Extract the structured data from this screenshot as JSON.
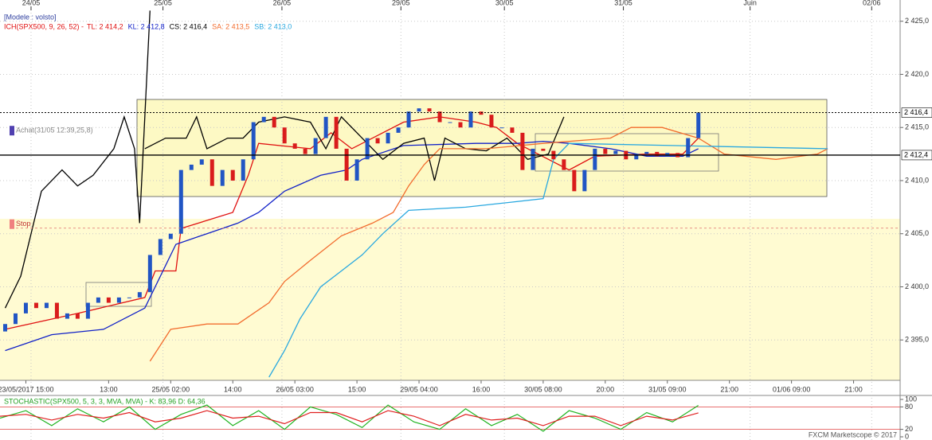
{
  "chart_data": [
    {
      "type": "candlestick",
      "title": "[Modele : volsto]",
      "indicator": "ICH(SPX500, 9, 26, 52) - ",
      "up_color": "#2155c4",
      "down_color": "#d91c1c",
      "x": [
        1,
        3,
        5,
        7,
        9,
        11,
        13,
        15,
        17,
        19,
        21,
        23,
        25,
        27,
        29,
        31,
        33,
        35,
        37,
        39,
        41,
        43,
        45,
        47,
        49,
        51,
        53,
        55,
        57,
        59,
        61,
        63,
        65,
        67,
        69,
        71,
        73,
        75,
        77,
        79,
        81,
        83,
        85,
        87,
        89,
        91,
        93,
        95,
        97,
        99,
        101,
        103,
        105,
        107,
        109,
        111,
        113,
        115,
        117,
        119,
        121,
        123,
        125,
        127,
        129,
        131,
        133,
        135
      ],
      "open": [
        2395.8,
        2396.5,
        2397.5,
        2398.5,
        2398,
        2398.5,
        2397,
        2397.5,
        2397,
        2398.5,
        2399,
        2398.5,
        2399,
        2399,
        2399.5,
        2403,
        2404.5,
        2405,
        2411,
        2411.5,
        2412,
        2409.5,
        2411,
        2410,
        2412,
        2415.5,
        2416,
        2415,
        2413.5,
        2413,
        2412.5,
        2414,
        2416,
        2413,
        2410,
        2412,
        2414,
        2413.5,
        2414.5,
        2415,
        2416.5,
        2416.8,
        2416.5,
        2415.5,
        2415.5,
        2415,
        2416.5,
        2416.2,
        2415,
        2415,
        2414.5,
        2411,
        2413,
        2412.8,
        2412,
        2411,
        2409,
        2411,
        2413,
        2412.5,
        2412.8,
        2412,
        2412.5,
        2412.7,
        2412.3,
        2412.6,
        2412.2,
        2414
      ],
      "close": [
        2396.5,
        2397.5,
        2398.5,
        2398,
        2398.5,
        2397,
        2397.5,
        2397,
        2398.5,
        2399,
        2398.5,
        2399,
        2399,
        2399.5,
        2403,
        2404.5,
        2405,
        2411,
        2411.5,
        2412,
        2409.5,
        2411,
        2410,
        2412,
        2415.5,
        2416,
        2415,
        2413.5,
        2413,
        2412.5,
        2414,
        2416,
        2413,
        2410,
        2412,
        2414,
        2413.5,
        2414.5,
        2415,
        2416.5,
        2416.8,
        2416.5,
        2415.5,
        2415.5,
        2415,
        2416.5,
        2416.2,
        2415,
        2415,
        2414.5,
        2411,
        2413,
        2412.8,
        2412,
        2411,
        2409,
        2411,
        2413,
        2412.5,
        2412.8,
        2412,
        2412.5,
        2412.7,
        2412.3,
        2412.6,
        2412.2,
        2414,
        2416.4
      ],
      "series": [
        {
          "name": "TL: 2 414,2",
          "color": "#e01010",
          "x": [
            1,
            15,
            28,
            30,
            34,
            35,
            45,
            48,
            50,
            60,
            64,
            68,
            72,
            78,
            85,
            92,
            96,
            100,
            104,
            110,
            115,
            125,
            132,
            135
          ],
          "values": [
            2396,
            2397.5,
            2399,
            2401.5,
            2401.5,
            2405.5,
            2407,
            2410.5,
            2413.5,
            2413,
            2414.5,
            2413,
            2414,
            2415.5,
            2416,
            2415.5,
            2415,
            2413.5,
            2412.5,
            2411,
            2412.3,
            2412.5,
            2412.5,
            2414
          ]
        },
        {
          "name": "KL: 2 412,8",
          "color": "#1020c8",
          "x": [
            1,
            10,
            20,
            28,
            34,
            40,
            46,
            50,
            55,
            62,
            67,
            70,
            78,
            92,
            100,
            105,
            110,
            118,
            125,
            132,
            135
          ],
          "values": [
            2394,
            2395.5,
            2396,
            2398,
            2404,
            2405,
            2406,
            2407,
            2409,
            2410.5,
            2411,
            2412,
            2413.3,
            2413.5,
            2413.5,
            2413.7,
            2413.5,
            2413,
            2412.3,
            2412.3,
            2413
          ]
        },
        {
          "name": "CS: 2 416,4",
          "color": "#000000",
          "x": [
            1,
            4,
            8,
            12,
            15,
            18,
            22,
            24,
            26,
            27,
            29,
            28,
            28,
            32,
            36,
            38,
            40,
            44,
            47,
            50,
            55,
            60,
            63,
            66,
            70,
            74,
            78,
            82,
            84,
            86,
            90,
            94,
            98,
            102,
            106,
            109
          ],
          "values": [
            2398,
            2401,
            2409,
            2411,
            2409.5,
            2410.5,
            2413,
            2416,
            2413,
            2406,
            2426,
            null,
            2413,
            2414,
            2414,
            2416,
            2413,
            2414,
            2414,
            2415.5,
            2416,
            2415.5,
            2413,
            2416,
            2414,
            2412,
            2413.5,
            2414,
            2410,
            2414,
            2413,
            2412.8,
            2414,
            2412,
            2412.5,
            2416
          ]
        },
        {
          "name": "SA: 2 413,5",
          "color": "#f26c2e",
          "x": [
            29,
            33,
            40,
            46,
            52,
            55,
            60,
            66,
            72,
            76,
            79,
            82,
            85,
            94,
            105,
            118,
            122,
            128,
            135,
            140,
            150,
            158,
            160
          ],
          "values": [
            2393,
            2396,
            2396.5,
            2396.5,
            2398.5,
            2400.5,
            2402.5,
            2404.8,
            2406,
            2407,
            2409.5,
            2411.5,
            2413,
            2413,
            2413.5,
            2414,
            2415,
            2415,
            2414,
            2412.5,
            2412,
            2412.5,
            2413
          ]
        },
        {
          "name": "SB: 2 413,0",
          "color": "#29a8e0",
          "x": [
            52,
            55,
            58,
            62,
            66,
            70,
            74,
            79,
            90,
            105,
            107,
            110,
            130,
            160
          ],
          "values": [
            2391.5,
            2394,
            2397,
            2400,
            2401.5,
            2403,
            2405,
            2407.2,
            2407.5,
            2408.3,
            2412,
            2413.5,
            2413.3,
            2413
          ]
        }
      ],
      "levels": [
        {
          "value": 2416.4,
          "label": "2 416,4"
        },
        {
          "value": 2412.4,
          "label": "2 412,4"
        }
      ],
      "annotations": [
        {
          "label": "Achat(31/05 12:39,25,8)",
          "value": 2414.7
        },
        {
          "label": "Stop",
          "value": 2405.9
        }
      ],
      "xlim": [
        0,
        174
      ],
      "ylim": [
        2391.2,
        2426.1
      ],
      "yticks": [
        {
          "value": 2395,
          "label": "2 395,0"
        },
        {
          "value": 2400,
          "label": "2 400,0"
        },
        {
          "value": 2405,
          "label": "2 405,0"
        },
        {
          "value": 2410,
          "label": "2 410,0"
        },
        {
          "value": 2415,
          "label": "2 415,0"
        },
        {
          "value": 2420,
          "label": "2 420,0"
        },
        {
          "value": 2425,
          "label": "2 425,0"
        }
      ],
      "xticks": [
        {
          "value": 5,
          "label": "23/05/2017 15:00"
        },
        {
          "value": 21,
          "label": "13:00"
        },
        {
          "value": 33,
          "label": "25/05 02:00"
        },
        {
          "value": 45,
          "label": "14:00"
        },
        {
          "value": 57,
          "label": "26/05 03:00"
        },
        {
          "value": 69,
          "label": "15:00"
        },
        {
          "value": 81,
          "label": "29/05 04:00"
        },
        {
          "value": 93,
          "label": "16:00"
        },
        {
          "value": 105,
          "label": "30/05 08:00"
        },
        {
          "value": 117,
          "label": "20:00"
        },
        {
          "value": 129,
          "label": "31/05 09:00"
        },
        {
          "value": 141,
          "label": "21:00"
        },
        {
          "value": 153,
          "label": "01/06 09:00"
        },
        {
          "value": 165,
          "label": "21:00"
        }
      ],
      "date_ticks": [
        {
          "value": 6,
          "label": "24/05"
        },
        {
          "value": 31.5,
          "label": "25/05"
        },
        {
          "value": 54.5,
          "label": "26/05"
        },
        {
          "value": 77.5,
          "label": "29/05"
        },
        {
          "value": 97.5,
          "label": "30/05"
        },
        {
          "value": 120.5,
          "label": "31/05"
        },
        {
          "value": 145,
          "label": "Juin"
        },
        {
          "value": 168.5,
          "label": "02/06"
        }
      ],
      "grid": true
    },
    {
      "type": "line",
      "title": "STOCHASTIC(SPX500, 5, 3, 3, MVA, MVA) - K: 83,96  D: 64,36",
      "x": [
        0,
        5,
        10,
        15,
        20,
        25,
        30,
        35,
        40,
        45,
        50,
        55,
        60,
        65,
        70,
        75,
        80,
        85,
        90,
        95,
        100,
        105,
        110,
        115,
        120,
        125,
        130,
        135
      ],
      "series": [
        {
          "color": "#22b422",
          "values": [
            50,
            70,
            30,
            75,
            40,
            80,
            20,
            60,
            85,
            30,
            70,
            20,
            80,
            60,
            25,
            85,
            40,
            20,
            75,
            30,
            60,
            15,
            70,
            50,
            20,
            65,
            40,
            84
          ]
        },
        {
          "color": "#e02020",
          "values": [
            55,
            60,
            45,
            60,
            50,
            65,
            40,
            50,
            70,
            50,
            55,
            35,
            65,
            65,
            40,
            70,
            55,
            30,
            60,
            45,
            50,
            30,
            55,
            55,
            30,
            55,
            45,
            64
          ]
        }
      ],
      "xlim": [
        0,
        174
      ],
      "ylim": [
        0,
        100
      ],
      "yticks": [
        0,
        20,
        80,
        100
      ]
    }
  ],
  "footer": "FXCM Marketscope © 2017"
}
